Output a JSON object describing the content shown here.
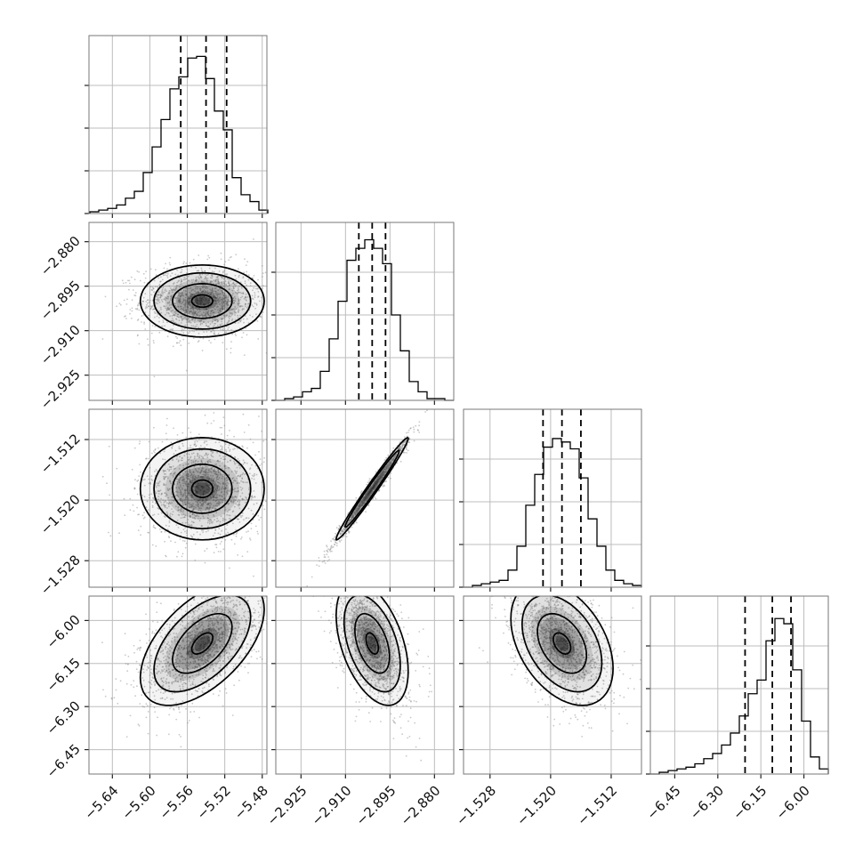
{
  "chart_data": {
    "type": "corner",
    "grid": true,
    "parameters": [
      {
        "index": 0,
        "range": [
          -5.665,
          -5.475
        ],
        "ticks": [
          -5.64,
          -5.6,
          -5.56,
          -5.52,
          -5.48
        ],
        "tick_labels": [
          "−5.64",
          "−5.60",
          "−5.56",
          "−5.52",
          "−5.48"
        ],
        "quantiles": [
          -5.567,
          -5.54,
          -5.518
        ],
        "hist_bin_centers": [
          -5.6593,
          -5.6498,
          -5.6403,
          -5.6308,
          -5.6213,
          -5.6118,
          -5.6023,
          -5.5928,
          -5.5833,
          -5.5738,
          -5.5643,
          -5.5548,
          -5.5453,
          -5.5358,
          -5.5263,
          -5.5168,
          -5.5073,
          -5.4978,
          -5.4883,
          -5.4788
        ],
        "hist_counts": [
          0.01,
          0.02,
          0.03,
          0.05,
          0.09,
          0.13,
          0.24,
          0.39,
          0.55,
          0.73,
          0.8,
          0.91,
          0.92,
          0.79,
          0.6,
          0.49,
          0.21,
          0.11,
          0.07,
          0.02
        ],
        "peak": [
          -5.544,
          -2.9
        ]
      },
      {
        "index": 1,
        "range": [
          -2.9335,
          -2.8735
        ],
        "ticks": [
          -2.925,
          -2.91,
          -2.895,
          -2.88
        ],
        "tick_labels": [
          "−2.925",
          "−2.910",
          "−2.895",
          "−2.880"
        ],
        "quantiles": [
          -2.9055,
          -2.901,
          -2.8965
        ],
        "hist_bin_centers": [
          -2.932,
          -2.929,
          -2.926,
          -2.923,
          -2.92,
          -2.917,
          -2.914,
          -2.911,
          -2.908,
          -2.905,
          -2.902,
          -2.899,
          -2.896,
          -2.893,
          -2.89,
          -2.887,
          -2.884,
          -2.881,
          -2.878,
          -2.875
        ],
        "hist_counts": [
          0.0,
          0.01,
          0.02,
          0.05,
          0.07,
          0.17,
          0.36,
          0.58,
          0.82,
          0.89,
          0.94,
          0.89,
          0.8,
          0.5,
          0.29,
          0.11,
          0.05,
          0.01,
          0.01,
          0.0
        ]
      },
      {
        "index": 2,
        "range": [
          -1.5315,
          -1.508
        ],
        "ticks": [
          -1.528,
          -1.52,
          -1.512
        ],
        "tick_labels": [
          "−1.528",
          "−1.520",
          "−1.512"
        ],
        "quantiles": [
          -1.521,
          -1.5185,
          -1.516
        ],
        "hist_bin_centers": [
          -1.53091,
          -1.52974,
          -1.52856,
          -1.52739,
          -1.52621,
          -1.52504,
          -1.52386,
          -1.52269,
          -1.52151,
          -1.52034,
          -1.51916,
          -1.51799,
          -1.51681,
          -1.51564,
          -1.51446,
          -1.51329,
          -1.51211,
          -1.51094,
          -1.50976,
          -1.50859
        ],
        "hist_counts": [
          0.0,
          0.01,
          0.02,
          0.03,
          0.04,
          0.1,
          0.24,
          0.48,
          0.66,
          0.82,
          0.87,
          0.85,
          0.81,
          0.64,
          0.4,
          0.24,
          0.1,
          0.04,
          0.02,
          0.01
        ]
      },
      {
        "index": 3,
        "range": [
          -6.535,
          -5.915
        ],
        "ticks": [
          -6.45,
          -6.3,
          -6.15,
          -6.0
        ],
        "tick_labels": [
          "−6.45",
          "−6.30",
          "−6.15",
          "−6.00"
        ],
        "quantiles": [
          -6.205,
          -6.11,
          -6.045
        ],
        "hist_bin_centers": [
          -6.5195,
          -6.4885,
          -6.4575,
          -6.4265,
          -6.3955,
          -6.3645,
          -6.3335,
          -6.3025,
          -6.2715,
          -6.2405,
          -6.2095,
          -6.1785,
          -6.1475,
          -6.1165,
          -6.0855,
          -6.0545,
          -6.0235,
          -5.9925,
          -5.9615,
          -5.9305
        ],
        "hist_counts": [
          0.0,
          0.01,
          0.02,
          0.03,
          0.04,
          0.06,
          0.09,
          0.12,
          0.17,
          0.24,
          0.34,
          0.47,
          0.55,
          0.78,
          0.91,
          0.88,
          0.61,
          0.31,
          0.1,
          0.03
        ]
      }
    ],
    "pairs": [
      {
        "x": 0,
        "y": 1,
        "center": [
          -5.544,
          -2.9
        ],
        "corr": 0.0,
        "contour_scales": [
          1.0,
          0.78,
          0.48,
          0.17
        ]
      },
      {
        "x": 0,
        "y": 2,
        "center": [
          -5.544,
          -1.5185
        ],
        "corr": 0.0,
        "contour_scales": [
          1.0,
          0.78,
          0.48,
          0.17
        ]
      },
      {
        "x": 1,
        "y": 2,
        "center": [
          -2.901,
          -1.5185
        ],
        "corr": 0.985,
        "contour_scales": [
          1.0,
          0.75
        ]
      },
      {
        "x": 0,
        "y": 3,
        "center": [
          -5.544,
          -6.08
        ],
        "corr": 0.55,
        "contour_scales": [
          1.0,
          0.78,
          0.48,
          0.17
        ]
      },
      {
        "x": 1,
        "y": 3,
        "center": [
          -2.901,
          -6.08
        ],
        "corr": -0.45,
        "contour_scales": [
          1.0,
          0.78,
          0.48,
          0.17
        ]
      },
      {
        "x": 2,
        "y": 3,
        "center": [
          -1.5185,
          -6.08
        ],
        "corr": -0.4,
        "contour_scales": [
          1.0,
          0.78,
          0.48,
          0.17
        ]
      }
    ],
    "colors": {
      "points": "#888888",
      "lines": "#000000",
      "grid": "#bdbdbd"
    }
  }
}
